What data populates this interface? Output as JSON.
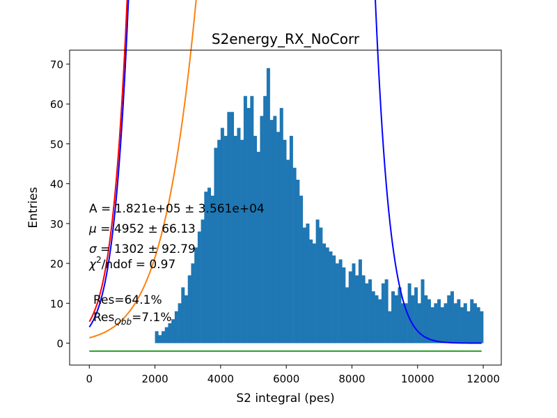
{
  "chart_data": {
    "type": "bar",
    "title": "S2energy_RX_NoCorr",
    "xlabel": "S2 integral (pes)",
    "ylabel": "Entries",
    "xlim": [
      -600,
      12550
    ],
    "ylim": [
      -5.5,
      73.5
    ],
    "xticks": [
      0,
      2000,
      4000,
      6000,
      8000,
      10000,
      12000
    ],
    "yticks": [
      0,
      10,
      20,
      30,
      40,
      50,
      60,
      70
    ],
    "grid": false,
    "histogram": {
      "color": "#1f77b4",
      "bin_start": 2000,
      "bin_width": 100,
      "values": [
        3,
        2,
        3,
        4,
        5,
        6,
        8,
        10,
        14,
        12,
        17,
        20,
        24,
        28,
        31,
        38,
        39,
        37,
        49,
        51,
        54,
        52,
        58,
        58,
        52,
        54,
        51,
        62,
        59,
        62,
        52,
        48,
        57,
        62,
        69,
        56,
        57,
        53,
        59,
        51,
        46,
        52,
        44,
        41,
        37,
        29,
        30,
        26,
        25,
        31,
        29,
        25,
        24,
        23,
        22,
        20,
        21,
        19,
        14,
        18,
        20,
        17,
        21,
        17,
        15,
        16,
        13,
        12,
        11,
        15,
        16,
        8,
        13,
        12,
        14,
        10,
        10,
        15,
        12,
        14,
        10,
        16,
        12,
        11,
        9,
        10,
        11,
        9,
        10,
        12,
        13,
        10,
        11,
        9,
        10,
        8,
        11,
        10,
        9,
        8
      ]
    },
    "series": [
      {
        "type": "gaussian",
        "color": "#0000ff",
        "A": 182100,
        "mu": 4952,
        "sigma": 1302,
        "bin_width": 100
      },
      {
        "type": "gaussian",
        "color": "#ff7f0e",
        "A": 91000,
        "mu": 9000,
        "sigma": 2400,
        "bin_width": 100
      },
      {
        "type": "sum",
        "color": "#ff0000",
        "components": [
          0,
          1
        ]
      },
      {
        "type": "constant",
        "color": "#2ca02c",
        "value": -2
      }
    ],
    "x_range": [
      0,
      11950
    ],
    "annotations": {
      "A": "A = 1.821e+05 ± 3.561e+04",
      "mu_symbol": "μ",
      "mu_text": " = 4952 ± 66.13",
      "sigma_symbol": "σ",
      "sigma_text": " = 1302 ± 92.79",
      "chi_symbol": "χ",
      "chi_sup": "2",
      "chi_text": "/ndof = 0.97",
      "res": "Res=64.1%",
      "resq_prefix": "Res",
      "resq_sub": "Qbb",
      "resq_value": "=7.1%"
    }
  }
}
